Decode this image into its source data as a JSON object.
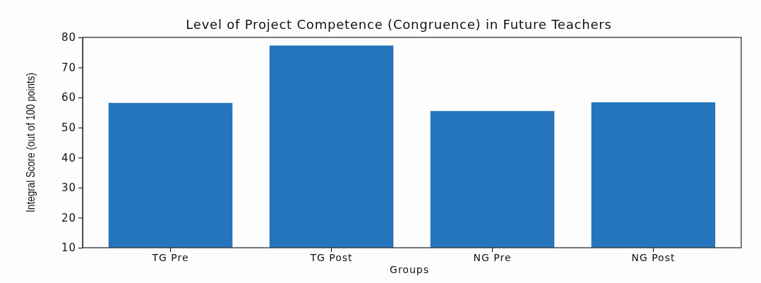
{
  "chart_data": {
    "type": "bar",
    "title": "Level of Project Competence (Congruence) in Future Teachers",
    "xlabel": "Groups",
    "ylabel": "Integral Score (out of 100 points)",
    "categories": [
      "TG Pre",
      "TG Post",
      "NG Pre",
      "NG Post"
    ],
    "values": [
      58.2,
      77.3,
      55.5,
      58.4
    ],
    "color": "#2475bb",
    "ylim": [
      10,
      80
    ],
    "yticks": [
      10,
      20,
      30,
      40,
      50,
      60,
      70,
      80
    ],
    "grid": false
  }
}
